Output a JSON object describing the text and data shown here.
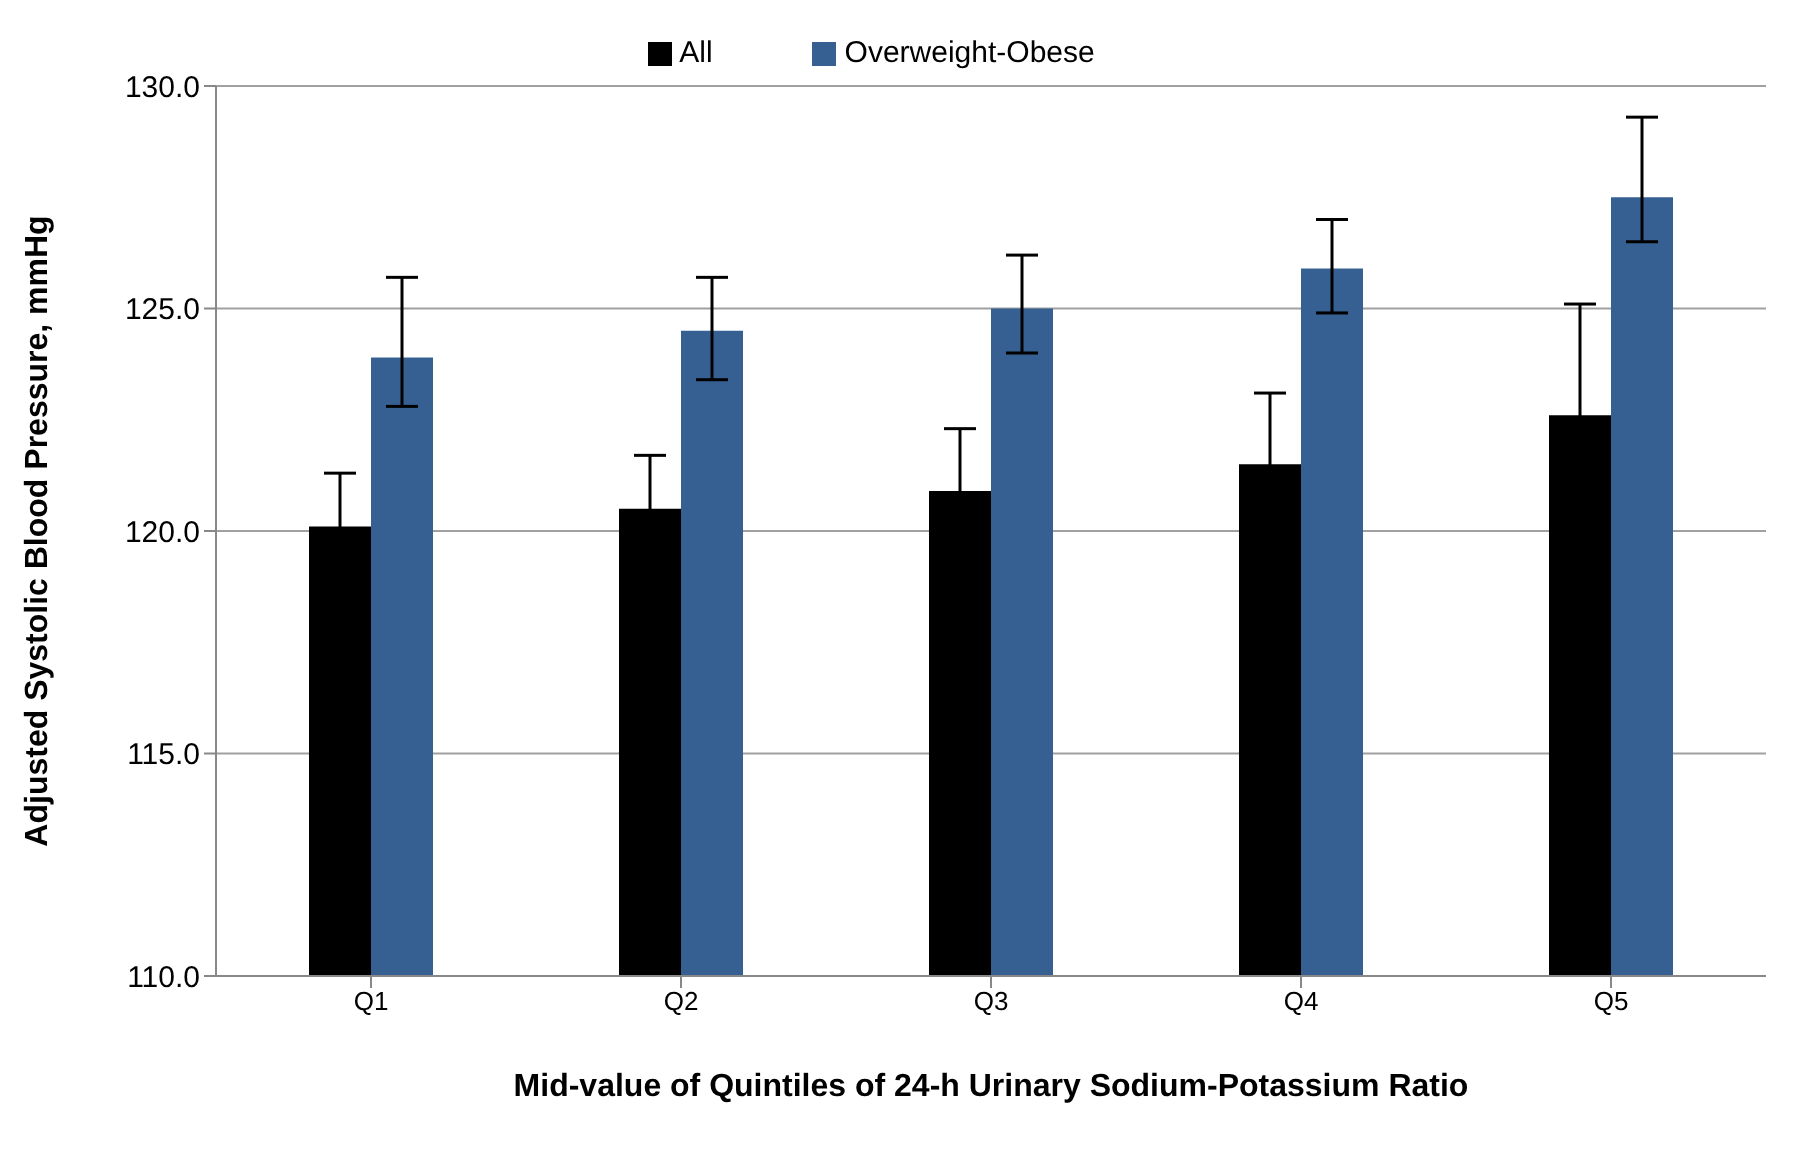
{
  "chart_data": {
    "type": "bar",
    "xlabel": "Mid-value of Quintiles of 24-h Urinary Sodium-Potassium Ratio",
    "ylabel": "Adjusted Systolic Blood Pressure, mmHg",
    "categories": [
      "Q1",
      "Q2",
      "Q3",
      "Q4",
      "Q5"
    ],
    "series": [
      {
        "name": "All",
        "color": "#000000",
        "values": [
          120.1,
          120.5,
          120.9,
          121.5,
          122.6
        ],
        "errors": [
          1.2,
          1.2,
          1.4,
          1.6,
          2.5
        ]
      },
      {
        "name": "Overweight-Obese",
        "color": "#366092",
        "values": [
          123.9,
          124.5,
          125.0,
          125.9,
          127.5
        ],
        "errors": [
          [
            122.8,
            125.7
          ],
          [
            123.4,
            125.7
          ],
          [
            124.0,
            126.2
          ],
          [
            124.9,
            127.0
          ],
          [
            126.5,
            129.3
          ]
        ]
      }
    ],
    "ylim": [
      110,
      130
    ],
    "yticks": [
      {
        "value": 110,
        "label": "110.0"
      },
      {
        "value": 115,
        "label": "115.0"
      },
      {
        "value": 120,
        "label": "120.0"
      },
      {
        "value": 125,
        "label": "125.0"
      },
      {
        "value": 130,
        "label": "130.0"
      }
    ],
    "grid": "y",
    "legend": "top"
  }
}
